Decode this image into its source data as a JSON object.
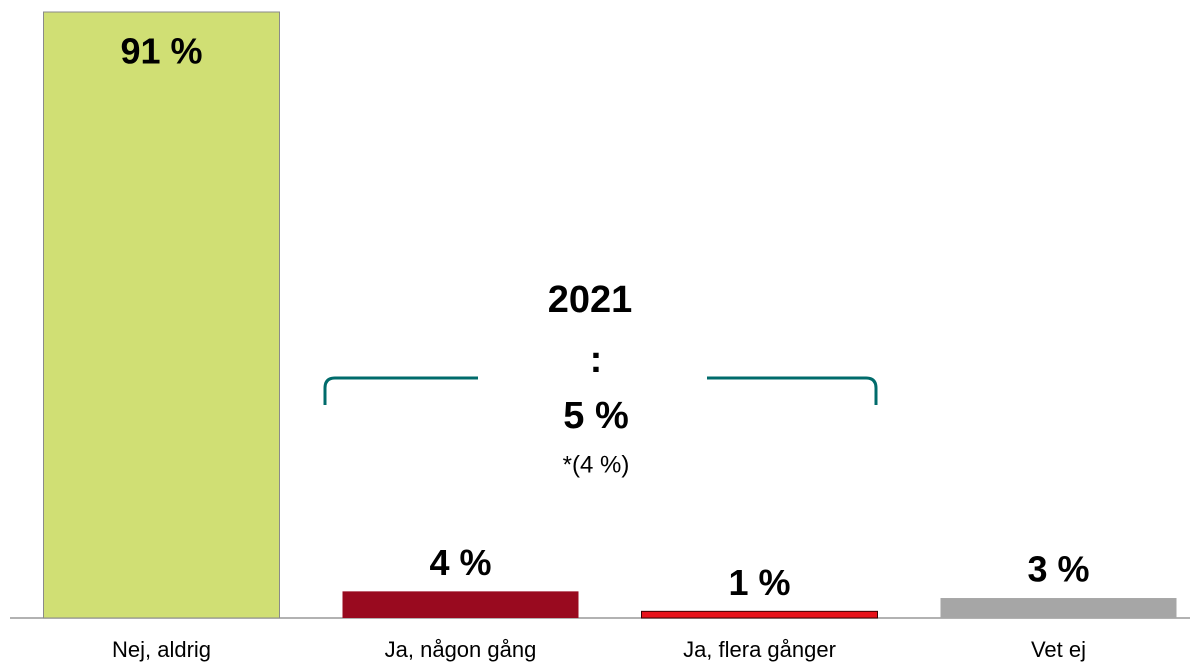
{
  "chart_data": {
    "type": "bar",
    "categories": [
      "Nej, aldrig",
      "Ja, någon gång",
      "Ja, flera gånger",
      "Vet ej"
    ],
    "values": [
      91,
      4,
      1,
      3
    ],
    "value_labels": [
      "91 %",
      "4 %",
      "1 %",
      "3 %"
    ],
    "colors": [
      "#d0df74",
      "#990a1f",
      "#e8121a",
      "#a6a6a6"
    ],
    "ylim": [
      0,
      91
    ],
    "annotations": [
      "2021",
      ":",
      "5 %",
      "*(4 %)"
    ]
  }
}
